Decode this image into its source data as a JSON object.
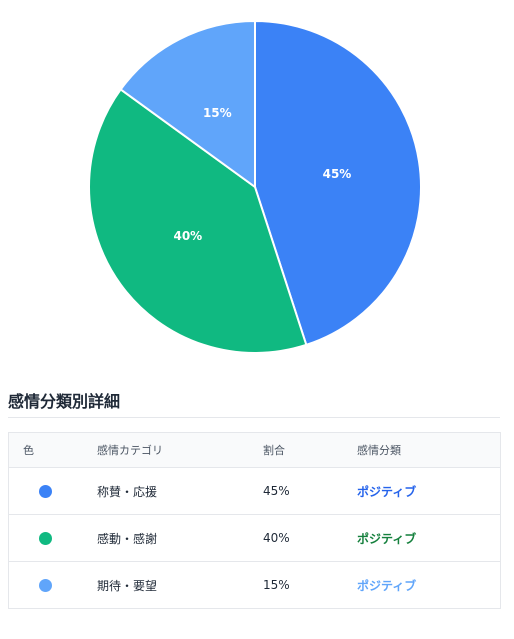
{
  "chart_data": {
    "type": "pie",
    "slices": [
      {
        "label": "称賛・応援",
        "value": 45,
        "color": "#3b82f6",
        "text": "45%"
      },
      {
        "label": "感動・感謝",
        "value": 40,
        "color": "#10b981",
        "text": "40%"
      },
      {
        "label": "期待・要望",
        "value": 15,
        "color": "#60a5fa",
        "text": "15%"
      }
    ]
  },
  "section": {
    "title": "感情分類別詳細"
  },
  "table": {
    "headers": {
      "color": "色",
      "category": "感情カテゴリ",
      "ratio": "割合",
      "classification": "感情分類"
    },
    "rows": [
      {
        "color": "#3b82f6",
        "category": "称賛・応援",
        "ratio": "45%",
        "classification": "ポジティブ",
        "class_color": "#2563eb"
      },
      {
        "color": "#10b981",
        "category": "感動・感謝",
        "ratio": "40%",
        "classification": "ポジティブ",
        "class_color": "#15803d"
      },
      {
        "color": "#60a5fa",
        "category": "期待・要望",
        "ratio": "15%",
        "classification": "ポジティブ",
        "class_color": "#60a5fa"
      }
    ]
  }
}
